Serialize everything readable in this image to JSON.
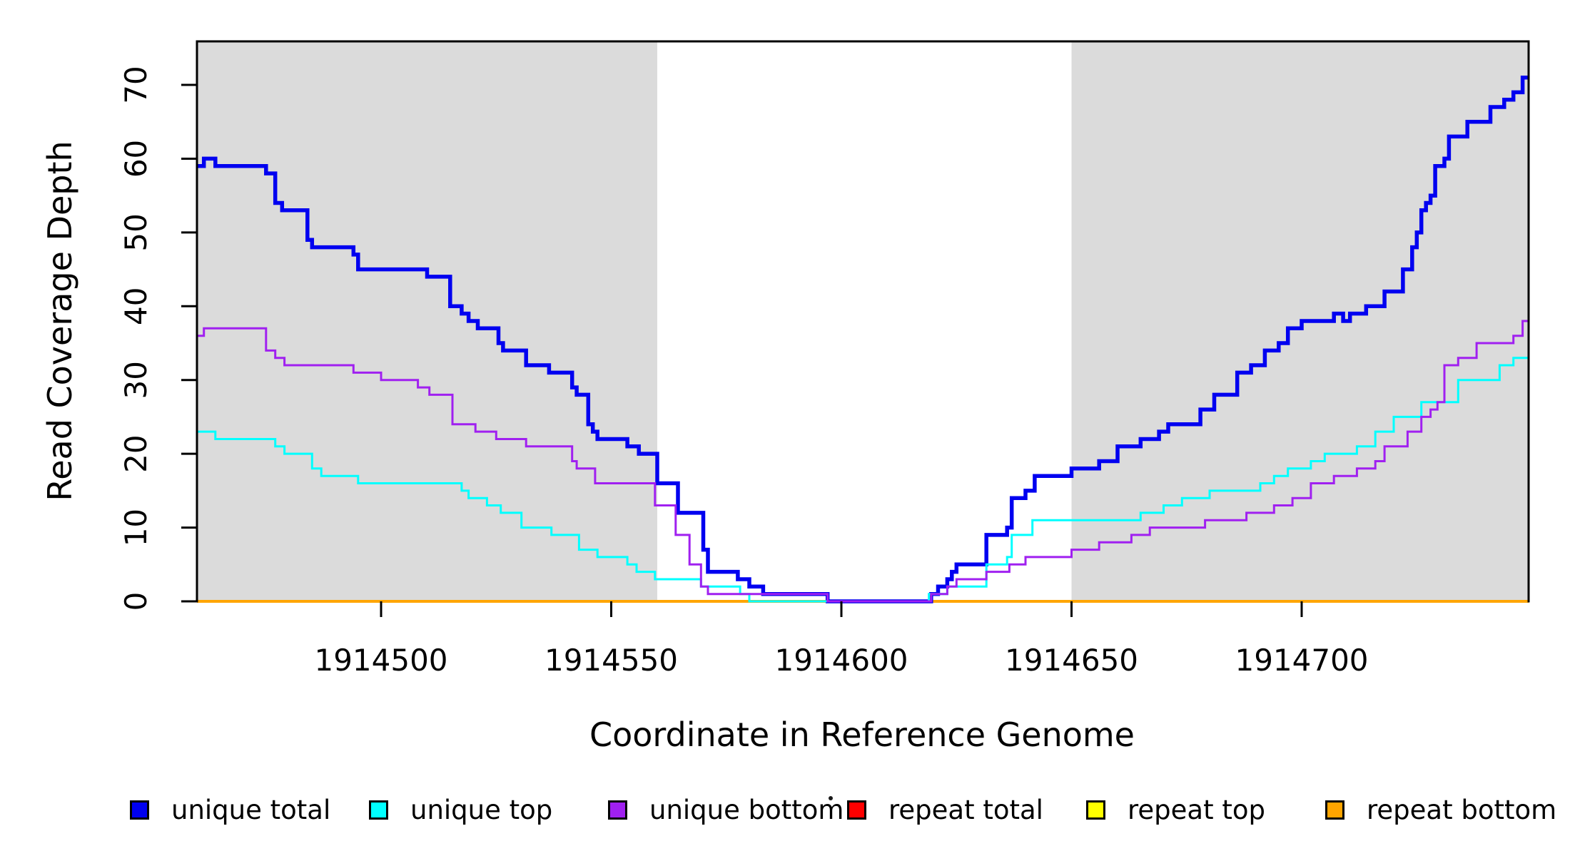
{
  "chart_data": {
    "type": "line",
    "subtype": "step",
    "title": "",
    "xlabel": "Coordinate in Reference Genome",
    "ylabel": "Read Coverage Depth",
    "xlim": [
      1914460,
      1914749.3
    ],
    "ylim": [
      0,
      75.9
    ],
    "x_ticks": [
      1914500,
      1914550,
      1914600,
      1914650,
      1914700
    ],
    "y_ticks": [
      0,
      10,
      20,
      30,
      40,
      50,
      60,
      70
    ],
    "grid": false,
    "legend_position": "bottom",
    "shaded_regions": [
      {
        "x0": 1914460,
        "x1": 1914560,
        "color": "#dbdbdb"
      },
      {
        "x0": 1914650,
        "x1": 1914749.3,
        "color": "#dbdbdb"
      }
    ],
    "legend": [
      {
        "label": "unique total",
        "color": "#0000f0"
      },
      {
        "label": "unique top",
        "color": "#00ffff"
      },
      {
        "label": "unique bottom",
        "color": "#a020f0"
      },
      {
        "label": "repeat total",
        "color": "#ff0000"
      },
      {
        "label": "repeat top",
        "color": "#ffff00"
      },
      {
        "label": "repeat bottom",
        "color": "#ffa500"
      }
    ],
    "draw_order": [
      "repeat total",
      "repeat top",
      "repeat bottom",
      "unique total",
      "unique top",
      "unique bottom"
    ],
    "series": [
      {
        "name": "unique total",
        "color": "#0000f0",
        "line_width": 5.5,
        "steps": [
          [
            1914460,
            59
          ],
          [
            1914461.5,
            60
          ],
          [
            1914464,
            59
          ],
          [
            1914475,
            58
          ],
          [
            1914477,
            54
          ],
          [
            1914478.5,
            53
          ],
          [
            1914484,
            49
          ],
          [
            1914485,
            48
          ],
          [
            1914494,
            47
          ],
          [
            1914495,
            45
          ],
          [
            1914510,
            44
          ],
          [
            1914515,
            40
          ],
          [
            1914517.5,
            39
          ],
          [
            1914519,
            38
          ],
          [
            1914521,
            37
          ],
          [
            1914525.5,
            35
          ],
          [
            1914526.5,
            34
          ],
          [
            1914531.5,
            32
          ],
          [
            1914536.5,
            31
          ],
          [
            1914541.5,
            29
          ],
          [
            1914542.5,
            28
          ],
          [
            1914545,
            24
          ],
          [
            1914546,
            23
          ],
          [
            1914547,
            22
          ],
          [
            1914553.5,
            21
          ],
          [
            1914556,
            20
          ],
          [
            1914560,
            16
          ],
          [
            1914564.5,
            12
          ],
          [
            1914570,
            7
          ],
          [
            1914571,
            4
          ],
          [
            1914577.5,
            3
          ],
          [
            1914580,
            2
          ],
          [
            1914583,
            1
          ],
          [
            1914597,
            0
          ],
          [
            1914619.5,
            1
          ],
          [
            1914621,
            2
          ],
          [
            1914623,
            3
          ],
          [
            1914624,
            4
          ],
          [
            1914625,
            5
          ],
          [
            1914631.5,
            9
          ],
          [
            1914636,
            10
          ],
          [
            1914637,
            14
          ],
          [
            1914640,
            15
          ],
          [
            1914642,
            17
          ],
          [
            1914650,
            18
          ],
          [
            1914656,
            19
          ],
          [
            1914660,
            21
          ],
          [
            1914665,
            22
          ],
          [
            1914669,
            23
          ],
          [
            1914671,
            24
          ],
          [
            1914678,
            26
          ],
          [
            1914681,
            28
          ],
          [
            1914686,
            31
          ],
          [
            1914689,
            32
          ],
          [
            1914692,
            34
          ],
          [
            1914695,
            35
          ],
          [
            1914697,
            37
          ],
          [
            1914700,
            38
          ],
          [
            1914707,
            39
          ],
          [
            1914709,
            38
          ],
          [
            1914710.5,
            39
          ],
          [
            1914714,
            40
          ],
          [
            1914718,
            42
          ],
          [
            1914722,
            45
          ],
          [
            1914724,
            48
          ],
          [
            1914725,
            50
          ],
          [
            1914726,
            53
          ],
          [
            1914727,
            54
          ],
          [
            1914728,
            55
          ],
          [
            1914729,
            59
          ],
          [
            1914731,
            60
          ],
          [
            1914732,
            63
          ],
          [
            1914736,
            65
          ],
          [
            1914741,
            67
          ],
          [
            1914744,
            68
          ],
          [
            1914746,
            69
          ],
          [
            1914748,
            71
          ]
        ]
      },
      {
        "name": "unique top",
        "color": "#00ffff",
        "line_width": 3,
        "steps": [
          [
            1914460,
            23
          ],
          [
            1914464,
            22
          ],
          [
            1914477,
            21
          ],
          [
            1914479,
            20
          ],
          [
            1914485,
            18
          ],
          [
            1914487,
            17
          ],
          [
            1914495,
            16
          ],
          [
            1914517.5,
            15
          ],
          [
            1914519,
            14
          ],
          [
            1914523,
            13
          ],
          [
            1914526,
            12
          ],
          [
            1914530.5,
            10
          ],
          [
            1914537,
            9
          ],
          [
            1914543,
            7
          ],
          [
            1914547,
            6
          ],
          [
            1914553.5,
            5
          ],
          [
            1914555.5,
            4
          ],
          [
            1914559.5,
            3
          ],
          [
            1914569.5,
            2
          ],
          [
            1914578,
            1
          ],
          [
            1914580,
            0
          ],
          [
            1914619,
            1
          ],
          [
            1914623,
            2
          ],
          [
            1914631.5,
            5
          ],
          [
            1914636,
            6
          ],
          [
            1914637,
            9
          ],
          [
            1914641.5,
            11
          ],
          [
            1914665,
            12
          ],
          [
            1914670,
            13
          ],
          [
            1914674,
            14
          ],
          [
            1914680,
            15
          ],
          [
            1914691,
            16
          ],
          [
            1914694,
            17
          ],
          [
            1914697,
            18
          ],
          [
            1914702,
            19
          ],
          [
            1914705,
            20
          ],
          [
            1914712,
            21
          ],
          [
            1914716,
            23
          ],
          [
            1914720,
            25
          ],
          [
            1914726,
            27
          ],
          [
            1914734,
            30
          ],
          [
            1914743,
            32
          ],
          [
            1914746,
            33
          ]
        ]
      },
      {
        "name": "unique bottom",
        "color": "#a020f0",
        "line_width": 3,
        "steps": [
          [
            1914460,
            36
          ],
          [
            1914461.5,
            37
          ],
          [
            1914475,
            34
          ],
          [
            1914477,
            33
          ],
          [
            1914479,
            32
          ],
          [
            1914494,
            31
          ],
          [
            1914500,
            30
          ],
          [
            1914508,
            29
          ],
          [
            1914510.5,
            28
          ],
          [
            1914515.5,
            24
          ],
          [
            1914520.5,
            23
          ],
          [
            1914525,
            22
          ],
          [
            1914531.5,
            21
          ],
          [
            1914541.5,
            19
          ],
          [
            1914542.5,
            18
          ],
          [
            1914546.5,
            16
          ],
          [
            1914559.5,
            13
          ],
          [
            1914564,
            9
          ],
          [
            1914567,
            5
          ],
          [
            1914569.5,
            2
          ],
          [
            1914571,
            1
          ],
          [
            1914597,
            0
          ],
          [
            1914619.5,
            1
          ],
          [
            1914623,
            2
          ],
          [
            1914625,
            3
          ],
          [
            1914631.5,
            4
          ],
          [
            1914636.5,
            5
          ],
          [
            1914640,
            6
          ],
          [
            1914650,
            7
          ],
          [
            1914656,
            8
          ],
          [
            1914663,
            9
          ],
          [
            1914667,
            10
          ],
          [
            1914679,
            11
          ],
          [
            1914688,
            12
          ],
          [
            1914694,
            13
          ],
          [
            1914698,
            14
          ],
          [
            1914702,
            16
          ],
          [
            1914707,
            17
          ],
          [
            1914712,
            18
          ],
          [
            1914716,
            19
          ],
          [
            1914718,
            21
          ],
          [
            1914723,
            23
          ],
          [
            1914726,
            25
          ],
          [
            1914728,
            26
          ],
          [
            1914729.5,
            27
          ],
          [
            1914731,
            32
          ],
          [
            1914734,
            33
          ],
          [
            1914738,
            35
          ],
          [
            1914746,
            36
          ],
          [
            1914748,
            38
          ]
        ]
      },
      {
        "name": "repeat total",
        "color": "#ff0000",
        "line_width": 3,
        "steps": [
          [
            1914460,
            0
          ]
        ]
      },
      {
        "name": "repeat top",
        "color": "#ffff00",
        "line_width": 3,
        "steps": [
          [
            1914460,
            0
          ]
        ]
      },
      {
        "name": "repeat bottom",
        "color": "#ffa500",
        "line_width": 4,
        "steps": [
          [
            1914460,
            0
          ]
        ]
      }
    ]
  }
}
